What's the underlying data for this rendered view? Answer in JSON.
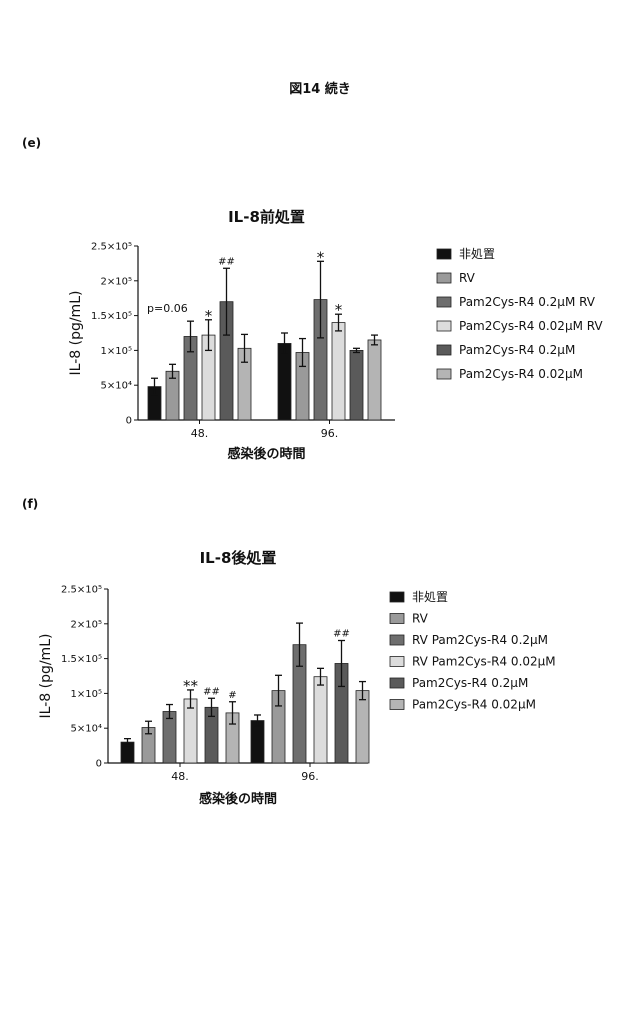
{
  "page": {
    "title": "図14 続き"
  },
  "panels": [
    {
      "label": "(e)"
    },
    {
      "label": "(f)"
    }
  ],
  "chart_data": [
    {
      "type": "bar",
      "title": "IL-8前処置",
      "xlabel": "感染後の時間",
      "ylabel": "IL-8 (pg/mL)",
      "ylim": [
        0,
        250000
      ],
      "yticks": [
        0,
        50000,
        100000,
        150000,
        200000,
        250000
      ],
      "ytick_labels": [
        "0",
        "5×10⁴",
        "1×10⁵",
        "1.5×10⁵",
        "2×10⁵",
        "2.5×10⁵"
      ],
      "categories": [
        "48.",
        "96."
      ],
      "legend_position": "right",
      "series": [
        {
          "name": "非処置",
          "color": "#111111",
          "values": [
            48000,
            110000
          ],
          "errors": [
            12000,
            15000
          ],
          "annotations": [
            "",
            ""
          ]
        },
        {
          "name": "RV",
          "color": "#9a9a9a",
          "values": [
            70000,
            97000
          ],
          "errors": [
            10000,
            20000
          ],
          "annotations": [
            "",
            ""
          ]
        },
        {
          "name": "Pam2Cys-R4 0.2μM RV",
          "color": "#6e6e6e",
          "values": [
            120000,
            173000
          ],
          "errors": [
            22000,
            55000
          ],
          "annotations": [
            "",
            "*"
          ]
        },
        {
          "name": "Pam2Cys-R4 0.02μM RV",
          "color": "#dcdcdc",
          "values": [
            122000,
            140000
          ],
          "errors": [
            22000,
            12000
          ],
          "annotations": [
            "*",
            "*"
          ]
        },
        {
          "name": "Pam2Cys-R4 0.2μM",
          "color": "#5a5a5a",
          "values": [
            170000,
            100000
          ],
          "errors": [
            48000,
            3000
          ],
          "annotations": [
            "##",
            ""
          ]
        },
        {
          "name": "Pam2Cys-R4 0.02μM",
          "color": "#b4b4b4",
          "values": [
            103000,
            115000
          ],
          "errors": [
            20000,
            7000
          ],
          "annotations": [
            "",
            ""
          ]
        }
      ],
      "extra_annotation": "p=0.06"
    },
    {
      "type": "bar",
      "title": "IL-8後処置",
      "xlabel": "感染後の時間",
      "ylabel": "IL-8 (pg/mL)",
      "ylim": [
        0,
        250000
      ],
      "yticks": [
        0,
        50000,
        100000,
        150000,
        200000,
        250000
      ],
      "ytick_labels": [
        "0",
        "5×10⁴",
        "1×10⁵",
        "1.5×10⁵",
        "2×10⁵",
        "2.5×10⁵"
      ],
      "categories": [
        "48.",
        "96."
      ],
      "legend_position": "right",
      "series": [
        {
          "name": "非処置",
          "color": "#111111",
          "values": [
            30000,
            61000
          ],
          "errors": [
            5000,
            8000
          ],
          "annotations": [
            "",
            ""
          ]
        },
        {
          "name": "RV",
          "color": "#9a9a9a",
          "values": [
            51000,
            104000
          ],
          "errors": [
            9000,
            22000
          ],
          "annotations": [
            "",
            ""
          ]
        },
        {
          "name": "RV Pam2Cys-R4 0.2μM",
          "color": "#6e6e6e",
          "values": [
            74000,
            170000
          ],
          "errors": [
            10000,
            31000
          ],
          "annotations": [
            "",
            ""
          ]
        },
        {
          "name": "RV Pam2Cys-R4 0.02μM",
          "color": "#dcdcdc",
          "values": [
            92000,
            124000
          ],
          "errors": [
            13000,
            12000
          ],
          "annotations": [
            "**",
            ""
          ]
        },
        {
          "name": "Pam2Cys-R4 0.2μM",
          "color": "#5a5a5a",
          "values": [
            80000,
            143000
          ],
          "errors": [
            13000,
            33000
          ],
          "annotations": [
            "##",
            "##"
          ]
        },
        {
          "name": "Pam2Cys-R4 0.02μM",
          "color": "#b4b4b4",
          "values": [
            72000,
            104000
          ],
          "errors": [
            16000,
            13000
          ],
          "annotations": [
            "#",
            ""
          ]
        }
      ]
    }
  ]
}
